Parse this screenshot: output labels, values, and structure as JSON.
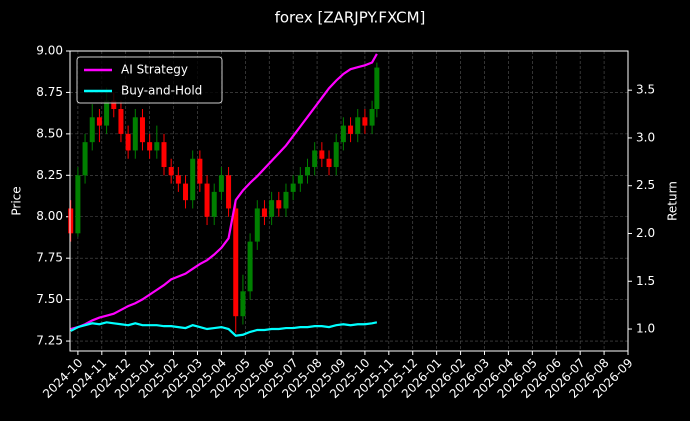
{
  "chart_data": {
    "type": "candlestick",
    "title": "forex [ZARJPY.FXCM]",
    "y_label": "Price",
    "y2_label": "Return",
    "xlim": [
      -0.33,
      23.0
    ],
    "xticks": [
      {
        "value": 0,
        "label": "2024-10"
      },
      {
        "value": 1,
        "label": "2024-11"
      },
      {
        "value": 2,
        "label": "2024-12"
      },
      {
        "value": 3,
        "label": "2025-01"
      },
      {
        "value": 4,
        "label": "2025-02"
      },
      {
        "value": 5,
        "label": "2025-03"
      },
      {
        "value": 6,
        "label": "2025-04"
      },
      {
        "value": 7,
        "label": "2025-05"
      },
      {
        "value": 8,
        "label": "2025-06"
      },
      {
        "value": 9,
        "label": "2025-07"
      },
      {
        "value": 10,
        "label": "2025-08"
      },
      {
        "value": 11,
        "label": "2025-09"
      },
      {
        "value": 12,
        "label": "2025-10"
      },
      {
        "value": 13,
        "label": "2025-11"
      },
      {
        "value": 14,
        "label": "2025-12"
      },
      {
        "value": 15,
        "label": "2026-01"
      },
      {
        "value": 16,
        "label": "2026-02"
      },
      {
        "value": 17,
        "label": "2026-03"
      },
      {
        "value": 18,
        "label": "2026-04"
      },
      {
        "value": 19,
        "label": "2026-05"
      },
      {
        "value": 20,
        "label": "2026-06"
      },
      {
        "value": 21,
        "label": "2026-07"
      },
      {
        "value": 22,
        "label": "2026-08"
      },
      {
        "value": 23,
        "label": "2026-09"
      }
    ],
    "ylim": [
      7.19,
      9.0
    ],
    "yticks": [
      7.25,
      {
        "value": 7.5,
        "label": "7.50"
      },
      7.75,
      {
        "value": 8.0,
        "label": "8.00"
      },
      8.25,
      {
        "value": 8.5,
        "label": "8.50"
      },
      8.75,
      {
        "value": 9.0,
        "label": "9.00"
      }
    ],
    "y2lim": [
      0.77,
      3.91
    ],
    "y2ticks": [
      {
        "value": 1.0,
        "label": "1.0"
      },
      1.5,
      {
        "value": 2.0,
        "label": "2.0"
      },
      2.5,
      {
        "value": 3.0,
        "label": "3.0"
      },
      3.5
    ],
    "grid": true,
    "legend": "upper left",
    "up_color": "#008000",
    "down_color": "#ff0000",
    "x": [
      -0.3,
      0.0,
      0.3,
      0.6,
      0.9,
      1.2,
      1.5,
      1.8,
      2.1,
      2.4,
      2.7,
      3.0,
      3.3,
      3.6,
      3.9,
      4.2,
      4.5,
      4.8,
      5.1,
      5.4,
      5.7,
      6.0,
      6.3,
      6.6,
      6.9,
      7.2,
      7.5,
      7.8,
      8.1,
      8.4,
      8.7,
      9.0,
      9.3,
      9.6,
      9.9,
      10.2,
      10.5,
      10.8,
      11.1,
      11.4,
      11.7,
      12.0,
      12.3,
      12.5
    ],
    "open": [
      8.05,
      7.9,
      8.25,
      8.45,
      8.6,
      8.55,
      8.7,
      8.65,
      8.5,
      8.4,
      8.6,
      8.45,
      8.4,
      8.45,
      8.3,
      8.25,
      8.2,
      8.1,
      8.35,
      8.2,
      8.0,
      8.15,
      8.25,
      8.05,
      7.4,
      7.55,
      7.85,
      8.05,
      8.0,
      8.1,
      8.05,
      8.15,
      8.2,
      8.25,
      8.3,
      8.4,
      8.35,
      8.3,
      8.45,
      8.55,
      8.5,
      8.6,
      8.55,
      8.65
    ],
    "high": [
      8.1,
      8.3,
      8.5,
      8.68,
      8.65,
      8.78,
      8.75,
      8.7,
      8.55,
      8.65,
      8.65,
      8.5,
      8.55,
      8.5,
      8.35,
      8.3,
      8.25,
      8.4,
      8.4,
      8.25,
      8.2,
      8.3,
      8.3,
      8.1,
      7.65,
      7.9,
      8.1,
      8.1,
      8.15,
      8.15,
      8.2,
      8.25,
      8.3,
      8.35,
      8.45,
      8.45,
      8.4,
      8.5,
      8.6,
      8.6,
      8.65,
      8.65,
      8.7,
      8.93
    ],
    "low": [
      7.85,
      7.88,
      8.2,
      8.4,
      8.45,
      8.5,
      8.6,
      8.45,
      8.35,
      8.35,
      8.4,
      8.35,
      8.35,
      8.25,
      8.2,
      8.15,
      8.05,
      8.05,
      8.15,
      7.95,
      7.95,
      8.1,
      8.0,
      7.3,
      7.35,
      7.5,
      7.8,
      7.95,
      7.95,
      8.0,
      8.0,
      8.1,
      8.15,
      8.2,
      8.25,
      8.3,
      8.25,
      8.25,
      8.4,
      8.45,
      8.45,
      8.5,
      8.5,
      8.6
    ],
    "close": [
      7.9,
      8.25,
      8.45,
      8.6,
      8.55,
      8.7,
      8.65,
      8.5,
      8.4,
      8.6,
      8.45,
      8.4,
      8.45,
      8.3,
      8.25,
      8.2,
      8.1,
      8.35,
      8.2,
      8.0,
      8.15,
      8.25,
      8.05,
      7.4,
      7.55,
      7.85,
      8.05,
      8.0,
      8.1,
      8.05,
      8.15,
      8.2,
      8.25,
      8.3,
      8.4,
      8.35,
      8.3,
      8.45,
      8.55,
      8.5,
      8.6,
      8.55,
      8.65,
      8.9
    ],
    "series": [
      {
        "name": "AI Strategy",
        "color": "#ff00ff",
        "axis": "y2",
        "values": [
          1.0,
          1.02,
          1.05,
          1.09,
          1.12,
          1.14,
          1.16,
          1.2,
          1.24,
          1.27,
          1.31,
          1.36,
          1.41,
          1.46,
          1.52,
          1.55,
          1.58,
          1.63,
          1.68,
          1.72,
          1.78,
          1.85,
          1.95,
          2.35,
          2.45,
          2.53,
          2.6,
          2.68,
          2.76,
          2.84,
          2.92,
          3.02,
          3.12,
          3.22,
          3.32,
          3.42,
          3.52,
          3.6,
          3.67,
          3.72,
          3.74,
          3.76,
          3.79,
          3.88
        ]
      },
      {
        "name": "Buy-and-Hold",
        "color": "#00ffff",
        "axis": "y2",
        "values": [
          0.98,
          1.02,
          1.04,
          1.06,
          1.05,
          1.07,
          1.06,
          1.05,
          1.04,
          1.06,
          1.04,
          1.04,
          1.04,
          1.03,
          1.03,
          1.02,
          1.01,
          1.04,
          1.02,
          1.0,
          1.01,
          1.02,
          1.0,
          0.93,
          0.94,
          0.97,
          0.99,
          0.99,
          1.0,
          1.0,
          1.01,
          1.01,
          1.02,
          1.02,
          1.03,
          1.03,
          1.02,
          1.04,
          1.05,
          1.04,
          1.05,
          1.05,
          1.06,
          1.07
        ]
      }
    ]
  }
}
